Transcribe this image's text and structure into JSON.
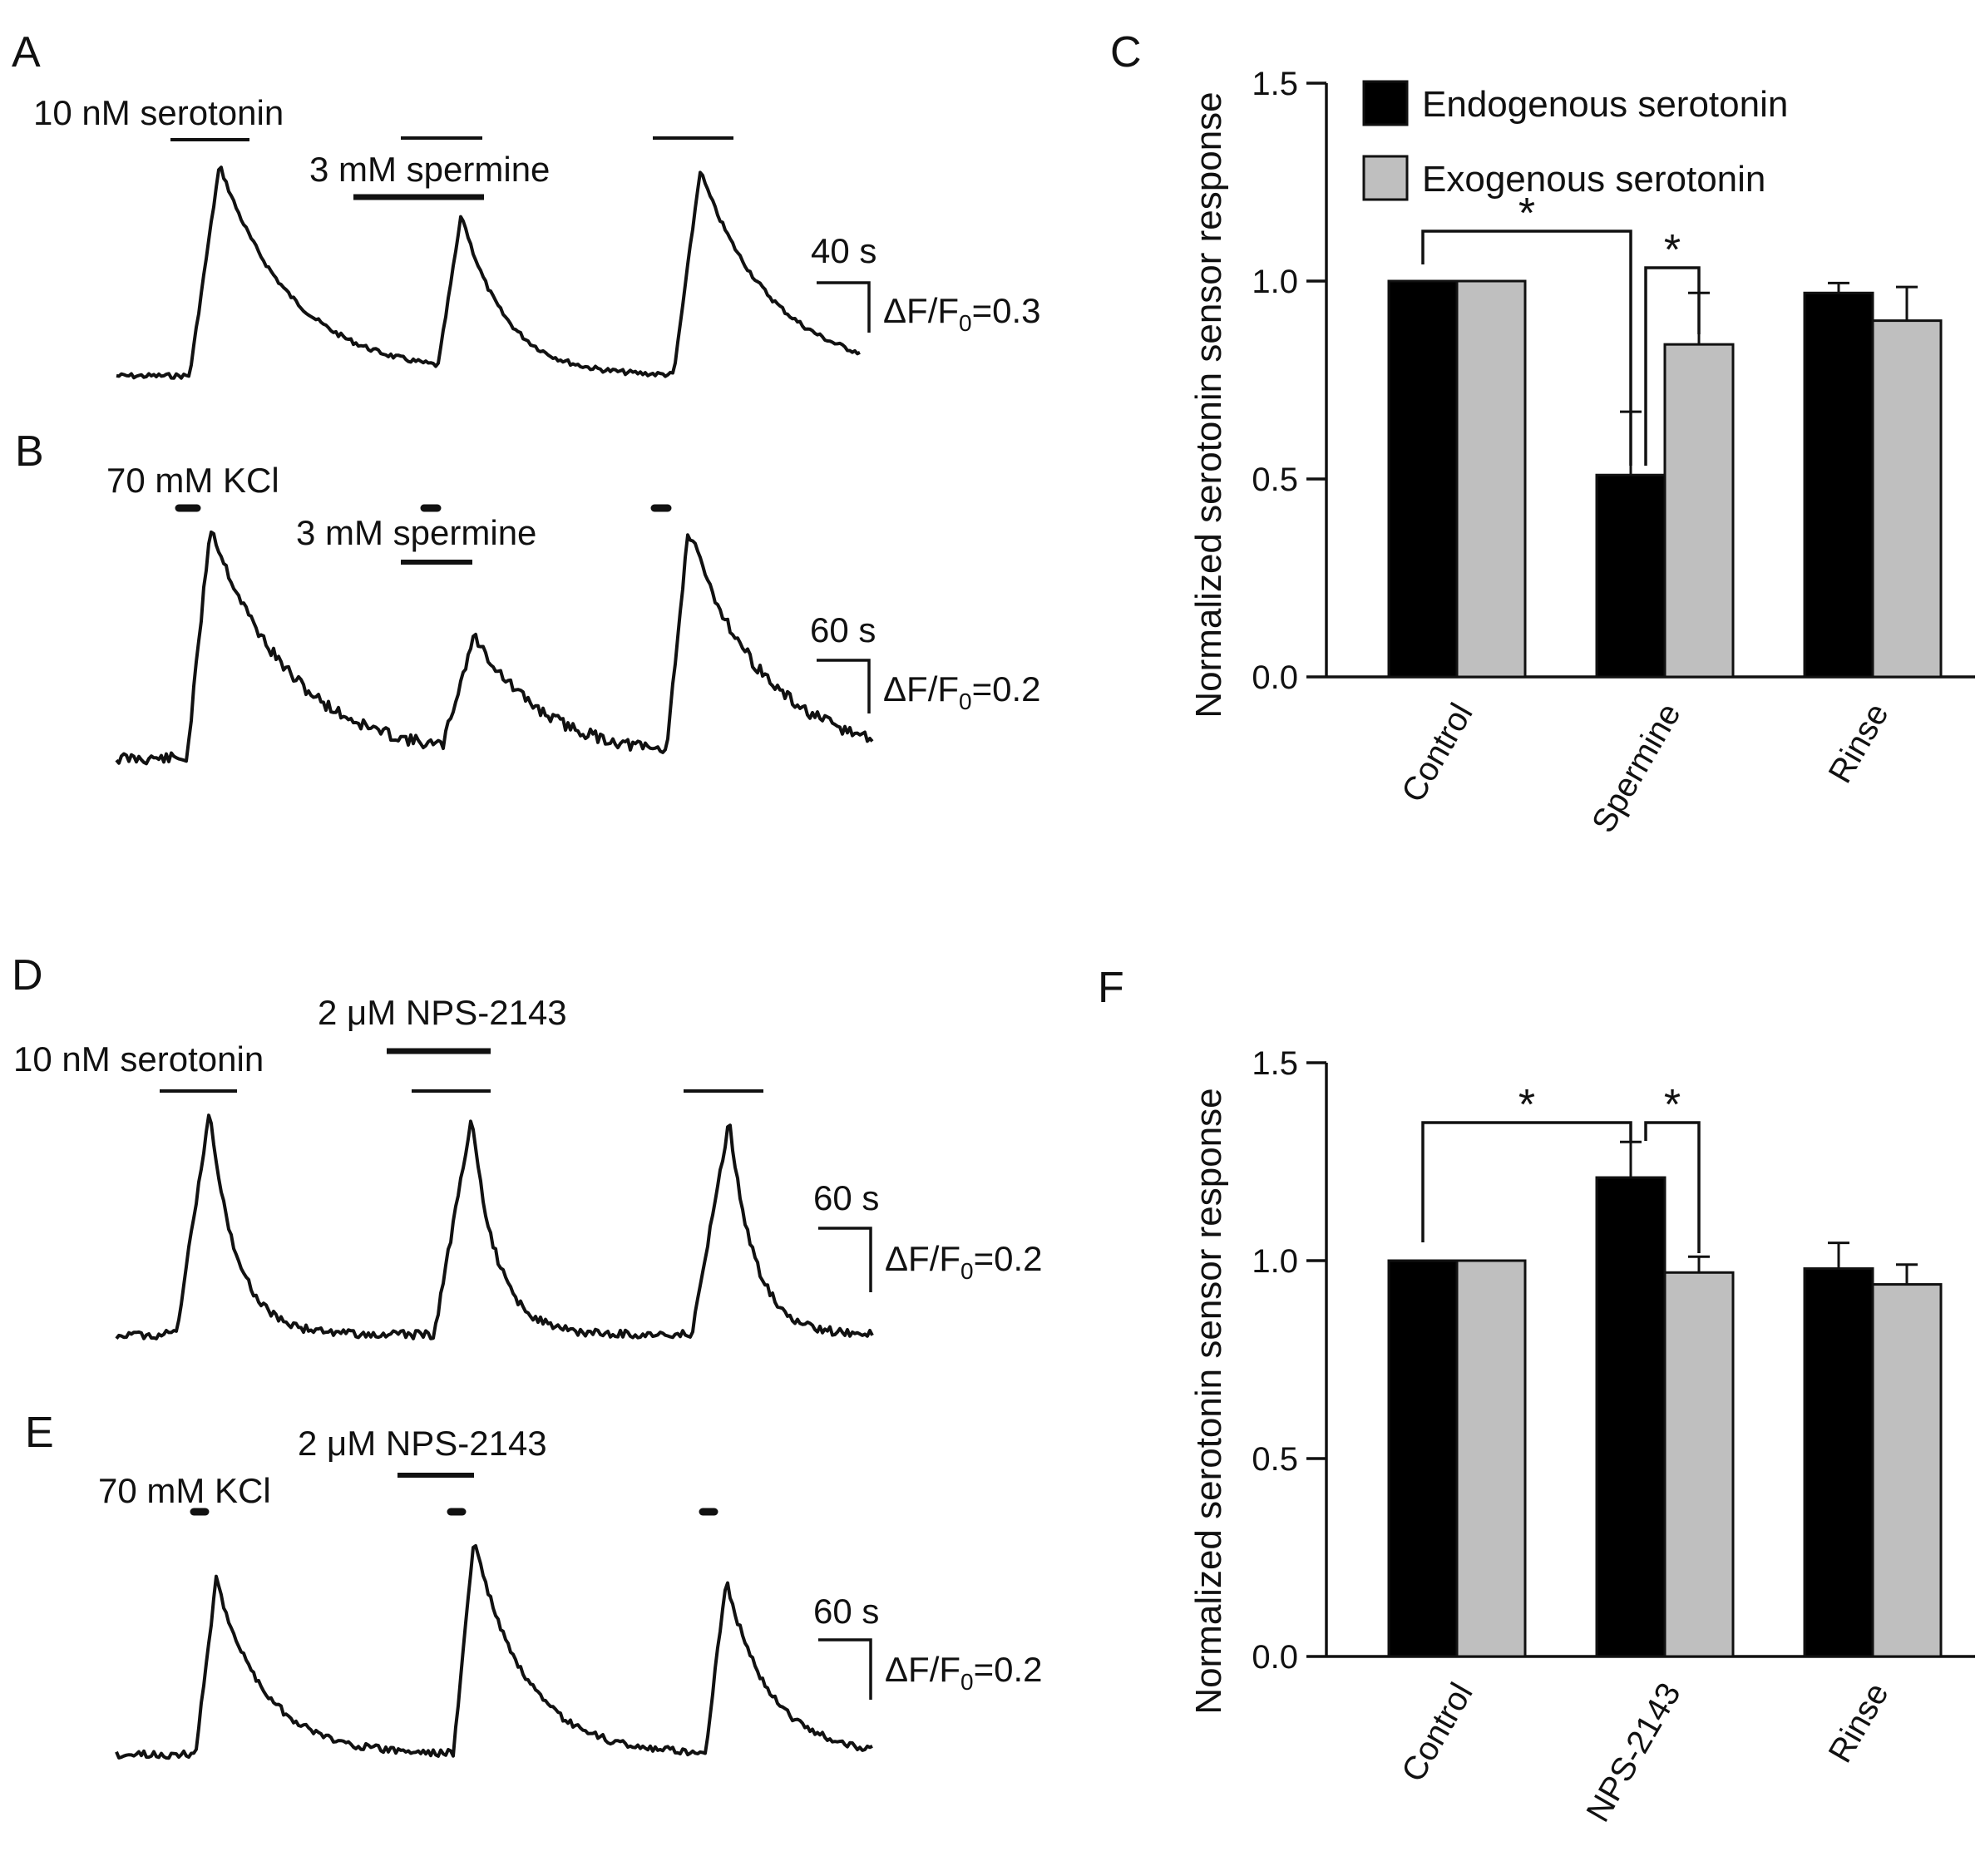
{
  "panels": {
    "A": "A",
    "B": "B",
    "C": "C",
    "D": "D",
    "E": "E",
    "F": "F"
  },
  "traces": {
    "A": {
      "drug1": "10 nM serotonin",
      "drug2": "3 mM spermine",
      "time": "40 s",
      "amp_prefix": "ΔF/F",
      "amp_sub": "0",
      "amp_val": "=0.3"
    },
    "B": {
      "drug1": "70 mM KCl",
      "drug2": "3 mM spermine",
      "time": "60 s",
      "amp_prefix": "ΔF/F",
      "amp_sub": "0",
      "amp_val": "=0.2"
    },
    "D": {
      "drug1": "10 nM serotonin",
      "drug2": "2 μM NPS-2143",
      "time": "60 s",
      "amp_prefix": "ΔF/F",
      "amp_sub": "0",
      "amp_val": "=0.2"
    },
    "E": {
      "drug1": "70 mM KCl",
      "drug2": "2 μM NPS-2143",
      "time": "60 s",
      "amp_prefix": "ΔF/F",
      "amp_sub": "0",
      "amp_val": "=0.2"
    }
  },
  "chart_data": [
    {
      "type": "bar",
      "title": "",
      "xlabel": "",
      "ylabel": "Normalized serotonin sensor response",
      "ylim": [
        0,
        1.5
      ],
      "yticks": [
        "0.0",
        "0.5",
        "1.0",
        "1.5"
      ],
      "categories": [
        "Control",
        "Spermine",
        "Rinse"
      ],
      "series": [
        {
          "name": "Endogenous serotonin",
          "color": "#000000",
          "values": [
            1.0,
            0.51,
            0.97
          ],
          "errors": [
            0,
            0.16,
            0.025
          ]
        },
        {
          "name": "Exogenous serotonin",
          "color": "#bfbfbf",
          "values": [
            1.0,
            0.84,
            0.9
          ],
          "errors": [
            0,
            0.13,
            0.085
          ]
        }
      ],
      "significance": [
        "*",
        "*"
      ]
    },
    {
      "type": "bar",
      "title": "",
      "xlabel": "",
      "ylabel": "Normalized serotonin sensor response",
      "ylim": [
        0,
        1.5
      ],
      "yticks": [
        "0.0",
        "0.5",
        "1.0",
        "1.5"
      ],
      "categories": [
        "Control",
        "NPS-2143",
        "Rinse"
      ],
      "series": [
        {
          "name": "Endogenous serotonin",
          "color": "#000000",
          "values": [
            1.0,
            1.21,
            0.98
          ],
          "errors": [
            0,
            0.09,
            0.065
          ]
        },
        {
          "name": "Exogenous serotonin",
          "color": "#bfbfbf",
          "values": [
            1.0,
            0.97,
            0.94
          ],
          "errors": [
            0,
            0.04,
            0.05
          ]
        }
      ],
      "significance": [
        "*",
        "*"
      ]
    }
  ]
}
